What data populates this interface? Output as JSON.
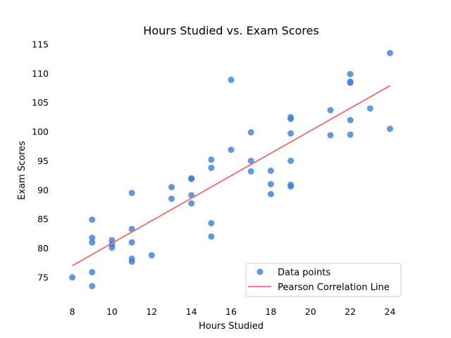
{
  "chart_data": {
    "type": "scatter",
    "title": "Hours Studied vs. Exam Scores",
    "xlabel": "Hours Studied",
    "ylabel": "Exam Scores",
    "xlim": [
      7.2,
      24.8
    ],
    "ylim": [
      71,
      115.6
    ],
    "xticks": [
      8,
      10,
      12,
      14,
      16,
      18,
      20,
      22,
      24
    ],
    "yticks": [
      75,
      80,
      85,
      90,
      95,
      100,
      105,
      110,
      115
    ],
    "grid": false,
    "legend_position": "lower-right",
    "series": [
      {
        "name": "Data points",
        "kind": "scatter",
        "color": "#3d7dd3",
        "points": [
          [
            8,
            75.0
          ],
          [
            9,
            73.5
          ],
          [
            9,
            75.9
          ],
          [
            9,
            81.0
          ],
          [
            9,
            81.8
          ],
          [
            9,
            84.9
          ],
          [
            10,
            80.1
          ],
          [
            10,
            80.7
          ],
          [
            10,
            81.4
          ],
          [
            11,
            77.7
          ],
          [
            11,
            78.2
          ],
          [
            11,
            81.0
          ],
          [
            11,
            83.3
          ],
          [
            11,
            89.5
          ],
          [
            12,
            78.8
          ],
          [
            13,
            88.5
          ],
          [
            13,
            90.5
          ],
          [
            14,
            87.7
          ],
          [
            14,
            89.1
          ],
          [
            14,
            91.9
          ],
          [
            14,
            92.0
          ],
          [
            15,
            82.0
          ],
          [
            15,
            84.3
          ],
          [
            15,
            93.8
          ],
          [
            15,
            95.2
          ],
          [
            16,
            96.9
          ],
          [
            16,
            108.9
          ],
          [
            17,
            93.2
          ],
          [
            17,
            95.0
          ],
          [
            17,
            99.9
          ],
          [
            18,
            89.3
          ],
          [
            18,
            91.0
          ],
          [
            18,
            93.3
          ],
          [
            19,
            90.6
          ],
          [
            19,
            90.9
          ],
          [
            19,
            95.0
          ],
          [
            19,
            99.7
          ],
          [
            19,
            102.2
          ],
          [
            19,
            102.5
          ],
          [
            21,
            99.4
          ],
          [
            21,
            103.7
          ],
          [
            22,
            99.5
          ],
          [
            22,
            102.0
          ],
          [
            22,
            108.4
          ],
          [
            22,
            108.6
          ],
          [
            22,
            109.9
          ],
          [
            23,
            104.0
          ],
          [
            24,
            100.5
          ],
          [
            24,
            113.5
          ]
        ]
      },
      {
        "name": "Pearson Correlation Line",
        "kind": "line",
        "color": "#ee6a6a",
        "points": [
          [
            8,
            77.0
          ],
          [
            24,
            107.9
          ]
        ]
      }
    ]
  }
}
